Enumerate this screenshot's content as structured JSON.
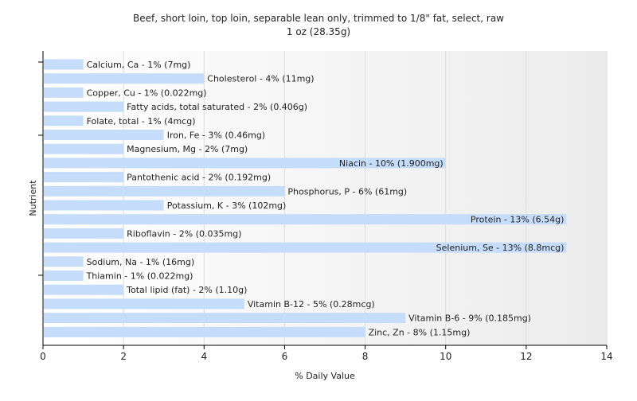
{
  "chart_data": {
    "type": "bar",
    "orientation": "horizontal",
    "title": "Beef, short loin, top loin, separable lean only, trimmed to 1/8\" fat, select, raw",
    "subtitle": "1 oz (28.35g)",
    "xlabel": "% Daily Value",
    "ylabel": "Nutrient",
    "xlim": [
      0,
      14
    ],
    "xticks": [
      0,
      2,
      4,
      6,
      8,
      10,
      12,
      14
    ],
    "grid": true,
    "bar_color": "#c6dcfb",
    "categories": [
      "Calcium, Ca",
      "Cholesterol",
      "Copper, Cu",
      "Fatty acids, total saturated",
      "Folate, total",
      "Iron, Fe",
      "Magnesium, Mg",
      "Niacin",
      "Pantothenic acid",
      "Phosphorus, P",
      "Potassium, K",
      "Protein",
      "Riboflavin",
      "Selenium, Se",
      "Sodium, Na",
      "Thiamin",
      "Total lipid (fat)",
      "Vitamin B-12",
      "Vitamin B-6",
      "Zinc, Zn"
    ],
    "values": [
      1,
      4,
      1,
      2,
      1,
      3,
      2,
      10,
      2,
      6,
      3,
      13,
      2,
      13,
      1,
      1,
      2,
      5,
      9,
      8
    ],
    "labels": [
      "Calcium, Ca - 1% (7mg)",
      "Cholesterol - 4% (11mg)",
      "Copper, Cu - 1% (0.022mg)",
      "Fatty acids, total saturated - 2% (0.406g)",
      "Folate, total - 1% (4mcg)",
      "Iron, Fe - 3% (0.46mg)",
      "Magnesium, Mg - 2% (7mg)",
      "Niacin - 10% (1.900mg)",
      "Pantothenic acid - 2% (0.192mg)",
      "Phosphorus, P - 6% (61mg)",
      "Potassium, K - 3% (102mg)",
      "Protein - 13% (6.54g)",
      "Riboflavin - 2% (0.035mg)",
      "Selenium, Se - 13% (8.8mcg)",
      "Sodium, Na - 1% (16mg)",
      "Thiamin - 1% (0.022mg)",
      "Total lipid (fat) - 2% (1.10g)",
      "Vitamin B-12 - 5% (0.28mcg)",
      "Vitamin B-6 - 9% (0.185mg)",
      "Zinc, Zn - 8% (1.15mg)"
    ]
  }
}
